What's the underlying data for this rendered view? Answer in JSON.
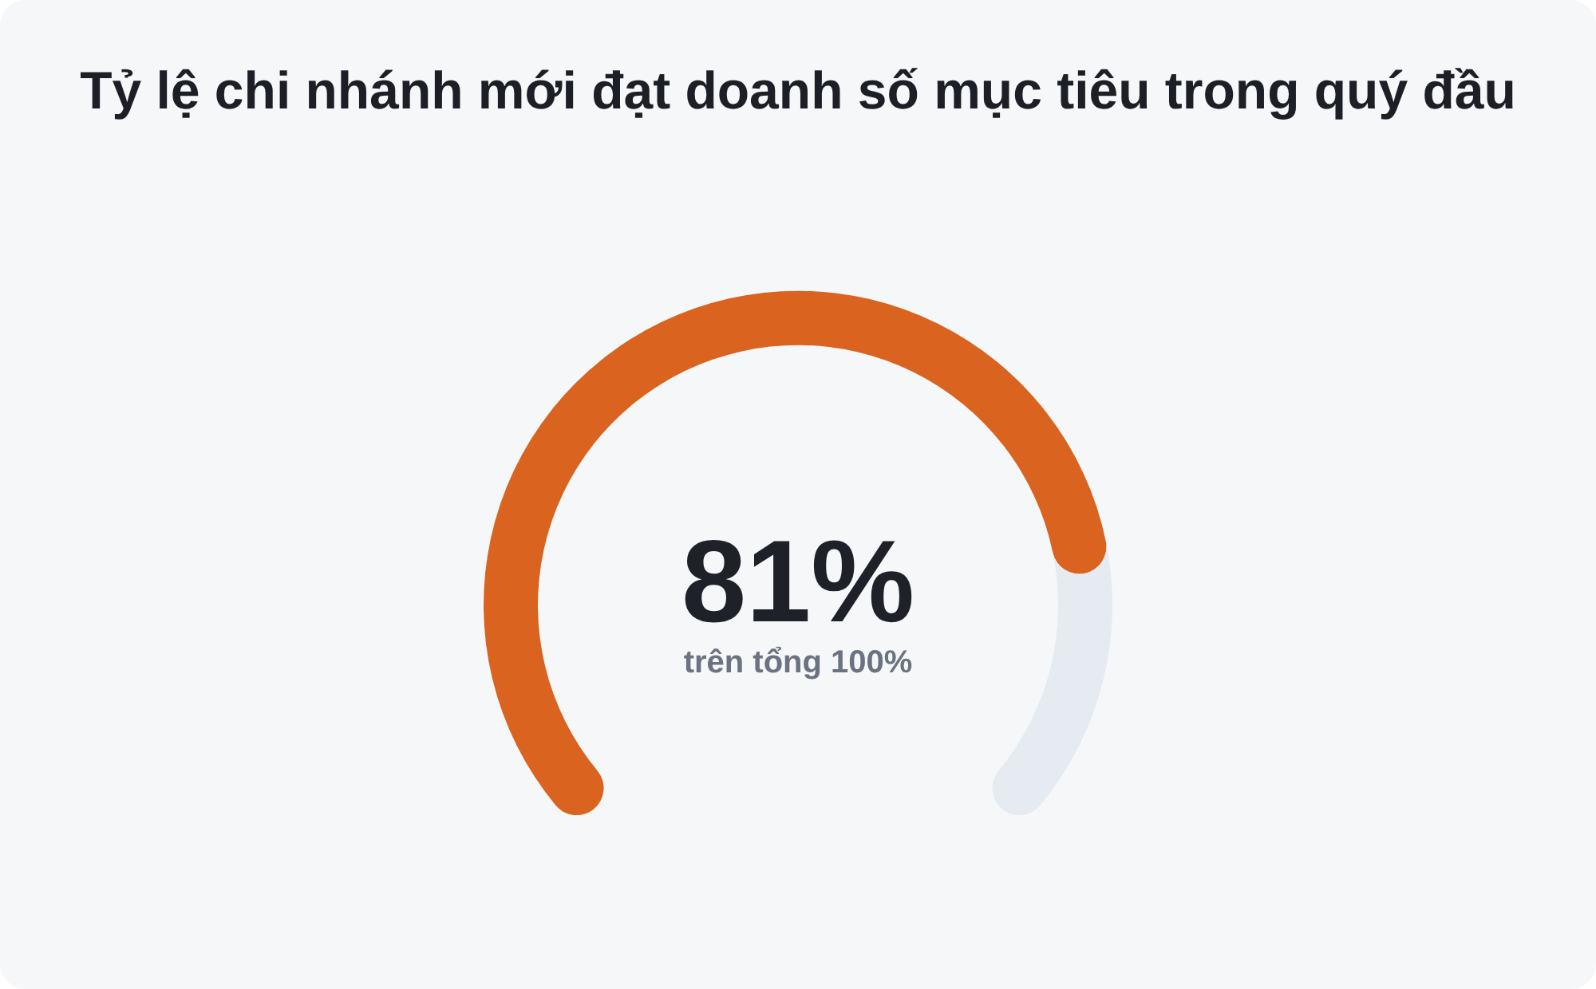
{
  "chart_data": {
    "type": "donut",
    "title": "Tỷ lệ chi nhánh mới đạt doanh số mục tiêu trong quý đầu",
    "categories": [
      null,
      null
    ],
    "values": [
      81,
      19
    ],
    "colors": [
      "#d9631f",
      "#e6ebf2"
    ],
    "value_labels": [
      "81%",
      null
    ],
    "annotations": [
      "trên tổng 100%"
    ]
  }
}
